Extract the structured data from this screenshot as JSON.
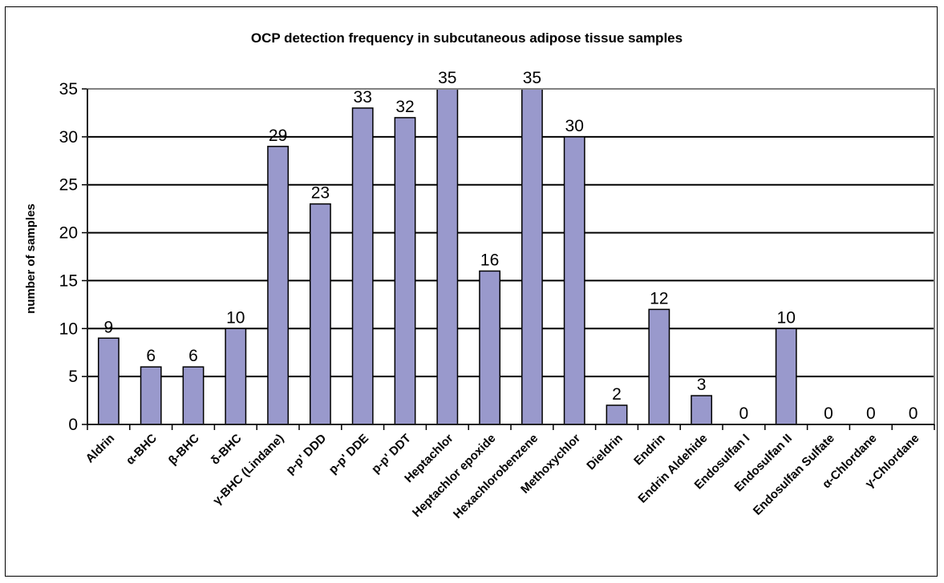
{
  "chart_data": {
    "type": "bar",
    "title": "OCP detection frequency in subcutaneous adipose tissue samples",
    "xlabel": "",
    "ylabel": "number of samples",
    "ylim": [
      0,
      35
    ],
    "yticks": [
      "0",
      "5",
      "10",
      "15",
      "20",
      "25",
      "30",
      "35"
    ],
    "categories": [
      "Aldrin",
      "α-BHC",
      "β-BHC",
      "δ-BHC",
      "γ-BHC (Lindane)",
      "p-p' DDD",
      "p-p' DDE",
      "p-p' DDT",
      "Heptachlor",
      "Heptachlor epoxide",
      "Hexachlorobenzene",
      "Methoxychlor",
      "Dieldrin",
      "Endrin",
      "Endrin Aldehide",
      "Endosulfan I",
      "Endosulfan II",
      "Endosulfan Sulfate",
      "α-Chlordane",
      "γ-Chlordane"
    ],
    "values": [
      9,
      6,
      6,
      10,
      29,
      23,
      33,
      32,
      35,
      16,
      35,
      30,
      2,
      12,
      3,
      0,
      10,
      0,
      0,
      0
    ],
    "data_labels": true,
    "grid": true,
    "legend": "none",
    "bar_color": "#9999CC",
    "plot_border_color": "#808080"
  }
}
